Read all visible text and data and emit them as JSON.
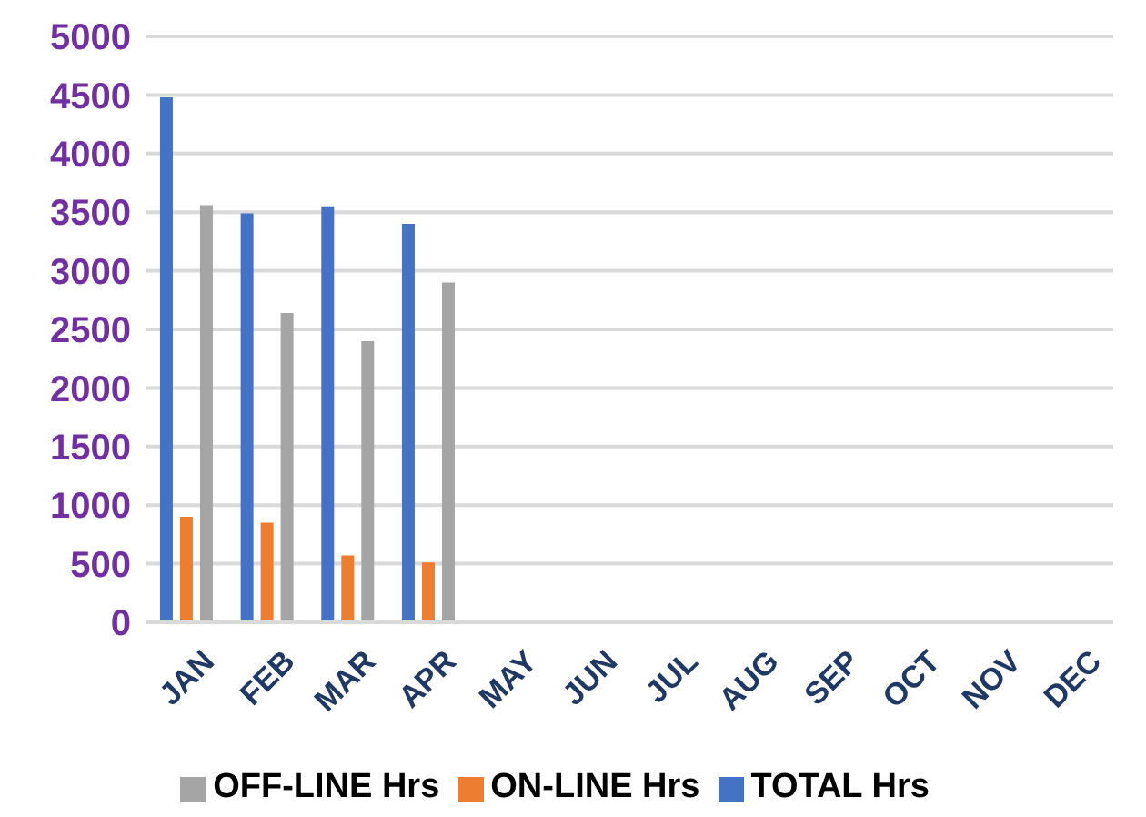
{
  "chart_data": {
    "type": "bar",
    "categories": [
      "JAN",
      "FEB",
      "MAR",
      "APR",
      "MAY",
      "JUN",
      "JUL",
      "AUG",
      "SEP",
      "OCT",
      "NOV",
      "DEC"
    ],
    "series": [
      {
        "name": "TOTAL Hrs",
        "color": "#4472c4",
        "values": [
          4480,
          3490,
          3550,
          3400,
          null,
          null,
          null,
          null,
          null,
          null,
          null,
          null
        ]
      },
      {
        "name": "ON-LINE Hrs",
        "color": "#ed7d31",
        "values": [
          900,
          850,
          570,
          510,
          null,
          null,
          null,
          null,
          null,
          null,
          null,
          null
        ]
      },
      {
        "name": "OFF-LINE Hrs",
        "color": "#a5a5a5",
        "values": [
          3560,
          2640,
          2400,
          2900,
          null,
          null,
          null,
          null,
          null,
          null,
          null,
          null
        ]
      }
    ],
    "ylim": [
      0,
      5000
    ],
    "yticks": [
      0,
      500,
      1000,
      1500,
      2000,
      2500,
      3000,
      3500,
      4000,
      4500,
      5000
    ],
    "grid": "y",
    "legend": "bottom"
  }
}
